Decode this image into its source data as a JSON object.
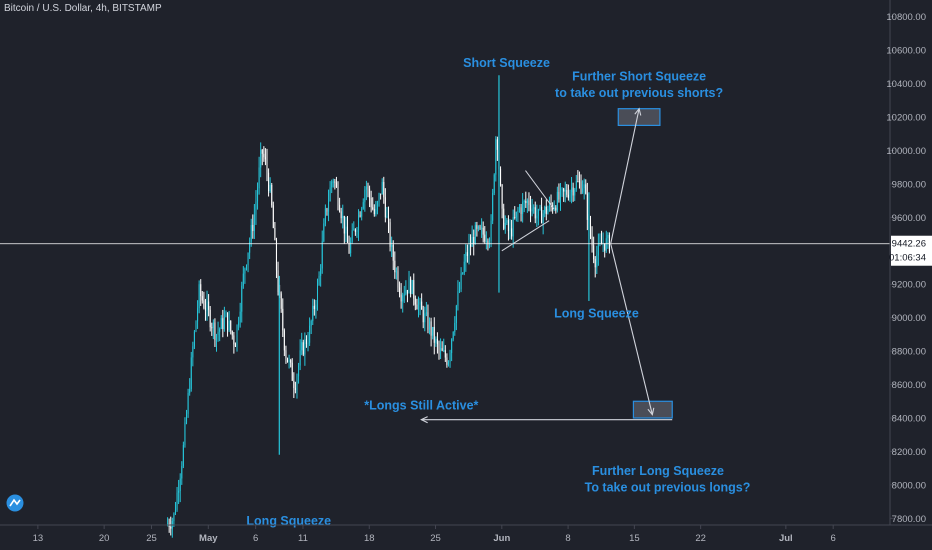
{
  "header": {
    "title": "Bitcoin / U.S. Dollar, 4h, BITSTAMP"
  },
  "colors": {
    "background": "#1f222b",
    "up": "#26c6da",
    "down": "#ffffff",
    "annotation": "#2a8fe0",
    "grid": "#2a2e39",
    "axis_text": "#b2b5be"
  },
  "chart_data": {
    "type": "candlestick",
    "symbol": "Bitcoin / U.S. Dollar",
    "interval": "4h",
    "exchange": "BITSTAMP",
    "ylim": [
      7760,
      10900
    ],
    "y_ticks": [
      7800,
      8000,
      8200,
      8400,
      8600,
      8800,
      9000,
      9200,
      9400,
      9600,
      9800,
      10000,
      10200,
      10400,
      10600,
      10800
    ],
    "y_tick_labels": [
      "7800.00",
      "8000.00",
      "8200.00",
      "8400.00",
      "8600.00",
      "8800.00",
      "9000.00",
      "9200.00",
      "9400.00",
      "9600.00",
      "9800.00",
      "10000.00",
      "10200.00",
      "10400.00",
      "10600.00",
      "10800.00"
    ],
    "x_ticks": [
      {
        "label": "13",
        "day": -18
      },
      {
        "label": "20",
        "day": -11
      },
      {
        "label": "25",
        "day": -6
      },
      {
        "label": "May",
        "day": 0
      },
      {
        "label": "6",
        "day": 5
      },
      {
        "label": "11",
        "day": 10
      },
      {
        "label": "18",
        "day": 17
      },
      {
        "label": "25",
        "day": 24
      },
      {
        "label": "Jun",
        "day": 31
      },
      {
        "label": "8",
        "day": 38
      },
      {
        "label": "15",
        "day": 45
      },
      {
        "label": "22",
        "day": 52
      },
      {
        "label": "Jul",
        "day": 61
      },
      {
        "label": "6",
        "day": 66
      }
    ],
    "xlim": [
      -22,
      72
    ],
    "last_price": "9442.26",
    "last_price_value": 9442.26,
    "countdown": "01:06:34",
    "price_path": [
      [
        -4.3,
        7760
      ],
      [
        -3.5,
        7800
      ],
      [
        -2.5,
        8200
      ],
      [
        -1.5,
        8800
      ],
      [
        -0.8,
        9150
      ],
      [
        0,
        9050
      ],
      [
        1,
        8900
      ],
      [
        2,
        9000
      ],
      [
        3,
        8850
      ],
      [
        4,
        9300
      ],
      [
        5,
        9600
      ],
      [
        5.8,
        10000
      ],
      [
        6.3,
        9900
      ],
      [
        6.8,
        9700
      ],
      [
        7.5,
        9200
      ],
      [
        8.3,
        8800
      ],
      [
        9.3,
        8600
      ],
      [
        10,
        8800
      ],
      [
        10.8,
        8900
      ],
      [
        11.8,
        9200
      ],
      [
        12.5,
        9600
      ],
      [
        13.3,
        9850
      ],
      [
        14,
        9700
      ],
      [
        15,
        9400
      ],
      [
        16,
        9600
      ],
      [
        16.8,
        9800
      ],
      [
        17.8,
        9600
      ],
      [
        18.5,
        9800
      ],
      [
        19.5,
        9400
      ],
      [
        20.5,
        9150
      ],
      [
        21.5,
        9200
      ],
      [
        22.5,
        9050
      ],
      [
        23.5,
        8950
      ],
      [
        24.5,
        8800
      ],
      [
        25.5,
        8750
      ],
      [
        26.3,
        9050
      ],
      [
        27.3,
        9350
      ],
      [
        28.3,
        9500
      ],
      [
        29.3,
        9500
      ],
      [
        30,
        9500
      ],
      [
        30.6,
        10150
      ],
      [
        31.2,
        9600
      ],
      [
        32,
        9500
      ],
      [
        33,
        9650
      ],
      [
        34,
        9700
      ],
      [
        35,
        9600
      ],
      [
        36,
        9650
      ],
      [
        37,
        9700
      ],
      [
        38,
        9750
      ],
      [
        39,
        9800
      ],
      [
        39.8,
        9800
      ],
      [
        40.5,
        9500
      ],
      [
        41,
        9350
      ],
      [
        41.8,
        9450
      ],
      [
        42.5,
        9442
      ]
    ],
    "spikes": [
      {
        "day": 7.5,
        "low": 8180,
        "high": 9250
      },
      {
        "day": 30.7,
        "low": 9150,
        "high": 10450
      },
      {
        "day": 40.2,
        "low": 9100,
        "high": 9750
      }
    ],
    "annotations": [
      {
        "text": "Short Squeeze",
        "day": 31.5,
        "price": 10500
      },
      {
        "text": "Further Short Squeeze",
        "day": 45.5,
        "price": 10420
      },
      {
        "text": "to take out previous shorts?",
        "day": 45.5,
        "price": 10320
      },
      {
        "text": "Long Squeeze",
        "day": 41.0,
        "price": 9000
      },
      {
        "text": "*Longs Still Active*",
        "day": 22.5,
        "price": 8450
      },
      {
        "text": "Further Long Squeeze",
        "day": 47.5,
        "price": 8060
      },
      {
        "text": "To take out previous longs?",
        "day": 48.5,
        "price": 7960
      },
      {
        "text": "Long Squeeze",
        "day": 8.5,
        "price": 7760
      }
    ],
    "boxes": [
      {
        "name": "short-target-box",
        "x0": 43.3,
        "x1": 47.7,
        "y0": 10150,
        "y1": 10250
      },
      {
        "name": "long-target-box",
        "x0": 44.9,
        "x1": 49.0,
        "y0": 8400,
        "y1": 8500
      }
    ],
    "arrows": [
      {
        "name": "short-arrow",
        "from": [
          42.5,
          9442
        ],
        "to": [
          45.5,
          10250
        ]
      },
      {
        "name": "long-arrow",
        "from": [
          42.5,
          9442
        ],
        "to": [
          46.9,
          8420
        ]
      },
      {
        "name": "longs-active-arrow",
        "from": [
          49.0,
          8390
        ],
        "to": [
          22.5,
          8390
        ]
      }
    ],
    "trend_lines": [
      {
        "name": "triangle-upper",
        "from": [
          33.5,
          9880
        ],
        "to": [
          36.5,
          9650
        ]
      },
      {
        "name": "triangle-lower",
        "from": [
          31.0,
          9400
        ],
        "to": [
          36.0,
          9580
        ]
      }
    ]
  }
}
